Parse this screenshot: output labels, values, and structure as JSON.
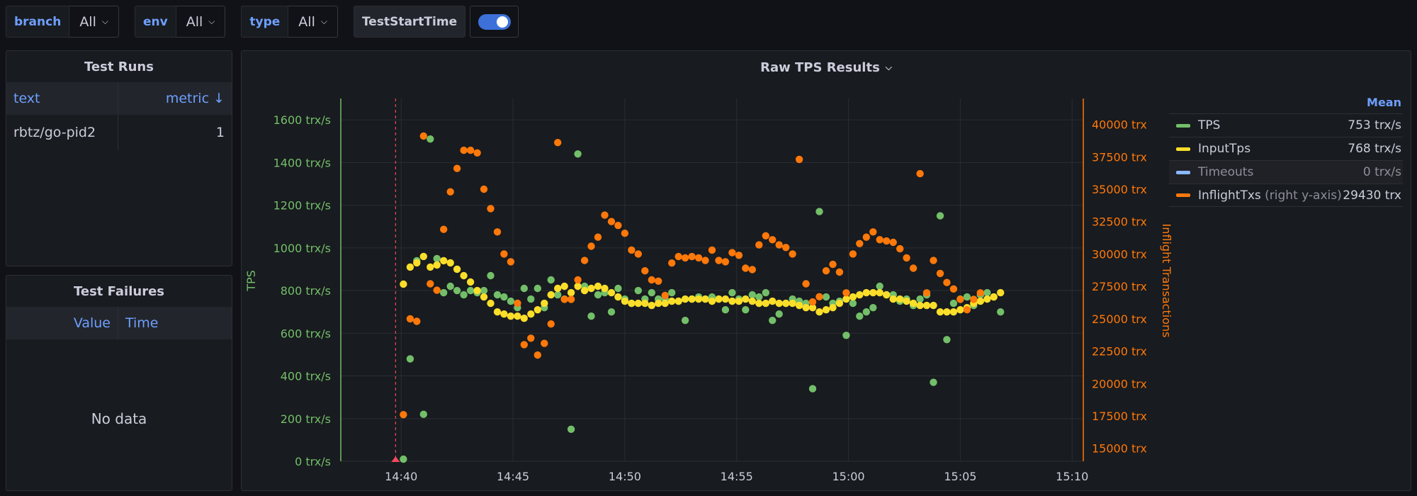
{
  "toolbar": {
    "branch": {
      "label": "branch",
      "value": "All"
    },
    "env": {
      "label": "env",
      "value": "All"
    },
    "type": {
      "label": "type",
      "value": "All"
    },
    "toggle": {
      "label": "TestStartTime",
      "on": true
    }
  },
  "test_runs": {
    "title": "Test Runs",
    "columns": [
      "text",
      "metric ↓"
    ],
    "rows": [
      {
        "text": "rbtz/go-pid2",
        "metric": "1"
      }
    ]
  },
  "test_failures": {
    "title": "Test Failures",
    "columns": [
      "Value",
      "Time"
    ],
    "empty": "No data"
  },
  "graph": {
    "title": "Raw TPS Results",
    "legend_header": "Mean",
    "legend": [
      {
        "name": "TPS",
        "note": "",
        "mean": "753 trx/s",
        "color": "#73bf69"
      },
      {
        "name": "InputTps",
        "note": "",
        "mean": "768 trx/s",
        "color": "#fade2a"
      },
      {
        "name": "Timeouts",
        "note": "",
        "mean": "0 trx/s",
        "color": "#8ab8ff"
      },
      {
        "name": "InflightTxs",
        "note": " (right y-axis)",
        "mean": "29430 trx",
        "color": "#ff780a"
      }
    ]
  },
  "chart_data": {
    "type": "scatter",
    "y_left_label": "TPS",
    "y_right_label": "Inflight Transactions",
    "y_left_range": [
      0,
      1700
    ],
    "y_right_range": [
      14000,
      42000
    ],
    "y_left_ticks": [
      "0 trx/s",
      "200 trx/s",
      "400 trx/s",
      "600 trx/s",
      "800 trx/s",
      "1000 trx/s",
      "1200 trx/s",
      "1400 trx/s",
      "1600 trx/s"
    ],
    "y_right_ticks": [
      "15000 trx",
      "17500 trx",
      "20000 trx",
      "22500 trx",
      "25000 trx",
      "27500 trx",
      "30000 trx",
      "32500 trx",
      "35000 trx",
      "37500 trx",
      "40000 trx"
    ],
    "x_range_minutes": [
      37.3,
      70.5
    ],
    "x_ticks": [
      {
        "m": 40,
        "label": "14:40"
      },
      {
        "m": 45,
        "label": "14:45"
      },
      {
        "m": 50,
        "label": "14:50"
      },
      {
        "m": 55,
        "label": "14:55"
      },
      {
        "m": 60,
        "label": "15:00"
      },
      {
        "m": 65,
        "label": "15:05"
      },
      {
        "m": 70,
        "label": "15:10"
      }
    ],
    "annotation_minute": 39.75,
    "grid": true,
    "legend_position": "right",
    "series": [
      {
        "name": "TPS",
        "color": "#73bf69",
        "axis": "left",
        "points": [
          [
            40.1,
            10
          ],
          [
            40.4,
            480
          ],
          [
            40.7,
            940
          ],
          [
            41.0,
            220
          ],
          [
            41.3,
            1510
          ],
          [
            41.6,
            950
          ],
          [
            41.9,
            790
          ],
          [
            42.2,
            820
          ],
          [
            42.5,
            800
          ],
          [
            42.8,
            780
          ],
          [
            43.1,
            800
          ],
          [
            43.4,
            790
          ],
          [
            43.7,
            800
          ],
          [
            44.0,
            870
          ],
          [
            44.3,
            780
          ],
          [
            44.6,
            770
          ],
          [
            44.9,
            750
          ],
          [
            45.2,
            720
          ],
          [
            45.5,
            810
          ],
          [
            45.8,
            760
          ],
          [
            46.1,
            810
          ],
          [
            46.4,
            720
          ],
          [
            46.7,
            850
          ],
          [
            47.0,
            780
          ],
          [
            47.3,
            760
          ],
          [
            47.6,
            150
          ],
          [
            47.9,
            1440
          ],
          [
            48.2,
            820
          ],
          [
            48.5,
            680
          ],
          [
            48.8,
            780
          ],
          [
            49.1,
            790
          ],
          [
            49.4,
            700
          ],
          [
            49.7,
            810
          ],
          [
            50.0,
            760
          ],
          [
            50.3,
            740
          ],
          [
            50.6,
            800
          ],
          [
            50.9,
            760
          ],
          [
            51.2,
            790
          ],
          [
            51.5,
            760
          ],
          [
            51.8,
            760
          ],
          [
            52.1,
            790
          ],
          [
            52.4,
            750
          ],
          [
            52.7,
            660
          ],
          [
            53.0,
            760
          ],
          [
            53.3,
            770
          ],
          [
            53.6,
            760
          ],
          [
            53.9,
            770
          ],
          [
            54.2,
            760
          ],
          [
            54.5,
            710
          ],
          [
            54.8,
            790
          ],
          [
            55.1,
            760
          ],
          [
            55.4,
            710
          ],
          [
            55.7,
            780
          ],
          [
            56.0,
            770
          ],
          [
            56.3,
            790
          ],
          [
            56.6,
            660
          ],
          [
            56.9,
            690
          ],
          [
            57.2,
            740
          ],
          [
            57.5,
            760
          ],
          [
            57.8,
            750
          ],
          [
            58.1,
            740
          ],
          [
            58.4,
            340
          ],
          [
            58.7,
            1170
          ],
          [
            59.0,
            770
          ],
          [
            59.3,
            740
          ],
          [
            59.6,
            750
          ],
          [
            59.9,
            590
          ],
          [
            60.2,
            740
          ],
          [
            60.5,
            680
          ],
          [
            60.8,
            700
          ],
          [
            61.1,
            720
          ],
          [
            61.4,
            820
          ],
          [
            61.7,
            780
          ],
          [
            62.0,
            780
          ],
          [
            62.3,
            750
          ],
          [
            62.6,
            760
          ],
          [
            62.9,
            730
          ],
          [
            63.2,
            760
          ],
          [
            63.5,
            780
          ],
          [
            63.8,
            370
          ],
          [
            64.1,
            1150
          ],
          [
            64.4,
            570
          ],
          [
            64.7,
            740
          ],
          [
            65.0,
            760
          ],
          [
            65.3,
            770
          ],
          [
            65.6,
            730
          ],
          [
            65.9,
            780
          ],
          [
            66.2,
            790
          ],
          [
            66.5,
            770
          ],
          [
            66.8,
            700
          ]
        ]
      },
      {
        "name": "InputTps",
        "color": "#fade2a",
        "axis": "left",
        "points": [
          [
            40.1,
            830
          ],
          [
            40.4,
            910
          ],
          [
            40.7,
            930
          ],
          [
            41.0,
            960
          ],
          [
            41.3,
            910
          ],
          [
            41.6,
            920
          ],
          [
            41.9,
            940
          ],
          [
            42.2,
            930
          ],
          [
            42.5,
            900
          ],
          [
            42.8,
            870
          ],
          [
            43.1,
            840
          ],
          [
            43.4,
            800
          ],
          [
            43.7,
            770
          ],
          [
            44.0,
            740
          ],
          [
            44.3,
            700
          ],
          [
            44.6,
            690
          ],
          [
            44.9,
            680
          ],
          [
            45.2,
            680
          ],
          [
            45.5,
            670
          ],
          [
            45.8,
            690
          ],
          [
            46.1,
            710
          ],
          [
            46.4,
            740
          ],
          [
            46.7,
            780
          ],
          [
            47.0,
            810
          ],
          [
            47.3,
            820
          ],
          [
            47.6,
            790
          ],
          [
            47.9,
            820
          ],
          [
            48.2,
            800
          ],
          [
            48.5,
            810
          ],
          [
            48.8,
            820
          ],
          [
            49.1,
            810
          ],
          [
            49.4,
            790
          ],
          [
            49.7,
            770
          ],
          [
            50.0,
            750
          ],
          [
            50.3,
            740
          ],
          [
            50.6,
            740
          ],
          [
            50.9,
            740
          ],
          [
            51.2,
            730
          ],
          [
            51.5,
            740
          ],
          [
            51.8,
            740
          ],
          [
            52.1,
            750
          ],
          [
            52.4,
            750
          ],
          [
            52.7,
            760
          ],
          [
            53.0,
            760
          ],
          [
            53.3,
            760
          ],
          [
            53.6,
            760
          ],
          [
            53.9,
            750
          ],
          [
            54.2,
            760
          ],
          [
            54.5,
            760
          ],
          [
            54.8,
            750
          ],
          [
            55.1,
            750
          ],
          [
            55.4,
            760
          ],
          [
            55.7,
            750
          ],
          [
            56.0,
            740
          ],
          [
            56.3,
            740
          ],
          [
            56.6,
            750
          ],
          [
            56.9,
            740
          ],
          [
            57.2,
            740
          ],
          [
            57.5,
            740
          ],
          [
            57.8,
            730
          ],
          [
            58.1,
            720
          ],
          [
            58.4,
            720
          ],
          [
            58.7,
            700
          ],
          [
            59.0,
            710
          ],
          [
            59.3,
            720
          ],
          [
            59.6,
            740
          ],
          [
            59.9,
            760
          ],
          [
            60.2,
            770
          ],
          [
            60.5,
            780
          ],
          [
            60.8,
            790
          ],
          [
            61.1,
            790
          ],
          [
            61.4,
            790
          ],
          [
            61.7,
            780
          ],
          [
            62.0,
            760
          ],
          [
            62.3,
            760
          ],
          [
            62.6,
            750
          ],
          [
            62.9,
            740
          ],
          [
            63.2,
            730
          ],
          [
            63.5,
            730
          ],
          [
            63.8,
            730
          ],
          [
            64.1,
            700
          ],
          [
            64.4,
            700
          ],
          [
            64.7,
            700
          ],
          [
            65.0,
            710
          ],
          [
            65.3,
            720
          ],
          [
            65.6,
            740
          ],
          [
            65.9,
            750
          ],
          [
            66.2,
            760
          ],
          [
            66.5,
            770
          ],
          [
            66.8,
            790
          ]
        ]
      },
      {
        "name": "Timeouts",
        "color": "#8ab8ff",
        "axis": "left",
        "points": []
      },
      {
        "name": "InflightTxs",
        "color": "#ff780a",
        "axis": "right",
        "points": [
          [
            40.1,
            17600
          ],
          [
            40.4,
            25000
          ],
          [
            40.7,
            24800
          ],
          [
            41.0,
            39100
          ],
          [
            41.3,
            27700
          ],
          [
            41.6,
            27200
          ],
          [
            41.9,
            31900
          ],
          [
            42.2,
            34800
          ],
          [
            42.5,
            36600
          ],
          [
            42.8,
            38000
          ],
          [
            43.1,
            38000
          ],
          [
            43.4,
            37800
          ],
          [
            43.7,
            35000
          ],
          [
            44.0,
            33500
          ],
          [
            44.3,
            31700
          ],
          [
            44.6,
            30000
          ],
          [
            44.9,
            29400
          ],
          [
            45.2,
            26200
          ],
          [
            45.5,
            23000
          ],
          [
            45.8,
            23500
          ],
          [
            46.1,
            22200
          ],
          [
            46.4,
            23100
          ],
          [
            46.7,
            24600
          ],
          [
            47.0,
            38600
          ],
          [
            47.3,
            26500
          ],
          [
            47.6,
            26500
          ],
          [
            47.9,
            28000
          ],
          [
            48.2,
            29500
          ],
          [
            48.5,
            30600
          ],
          [
            48.8,
            31300
          ],
          [
            49.1,
            33000
          ],
          [
            49.4,
            32500
          ],
          [
            49.7,
            32200
          ],
          [
            50.0,
            31600
          ],
          [
            50.3,
            30300
          ],
          [
            50.6,
            30000
          ],
          [
            50.9,
            28700
          ],
          [
            51.2,
            28000
          ],
          [
            51.5,
            27900
          ],
          [
            51.8,
            26800
          ],
          [
            52.1,
            29300
          ],
          [
            52.4,
            29800
          ],
          [
            52.7,
            29700
          ],
          [
            53.0,
            29800
          ],
          [
            53.3,
            29700
          ],
          [
            53.6,
            29500
          ],
          [
            53.9,
            30300
          ],
          [
            54.2,
            29500
          ],
          [
            54.5,
            29400
          ],
          [
            54.8,
            30100
          ],
          [
            55.1,
            29900
          ],
          [
            55.4,
            28900
          ],
          [
            55.7,
            28800
          ],
          [
            56.0,
            30700
          ],
          [
            56.3,
            31400
          ],
          [
            56.6,
            31100
          ],
          [
            56.9,
            30700
          ],
          [
            57.2,
            30500
          ],
          [
            57.5,
            30000
          ],
          [
            57.8,
            37300
          ],
          [
            58.1,
            27700
          ],
          [
            58.4,
            26300
          ],
          [
            58.7,
            26700
          ],
          [
            59.0,
            28700
          ],
          [
            59.3,
            29200
          ],
          [
            59.6,
            28600
          ],
          [
            59.9,
            27000
          ],
          [
            60.2,
            30000
          ],
          [
            60.5,
            30800
          ],
          [
            60.8,
            31300
          ],
          [
            61.1,
            31700
          ],
          [
            61.4,
            31100
          ],
          [
            61.7,
            31000
          ],
          [
            62.0,
            30900
          ],
          [
            62.3,
            30400
          ],
          [
            62.6,
            29700
          ],
          [
            62.9,
            28900
          ],
          [
            63.2,
            36200
          ],
          [
            63.5,
            27000
          ],
          [
            63.8,
            29500
          ],
          [
            64.1,
            28500
          ],
          [
            64.4,
            27800
          ],
          [
            64.7,
            27300
          ],
          [
            65.0,
            26500
          ],
          [
            65.3,
            25700
          ],
          [
            65.6,
            26500
          ],
          [
            65.9,
            27000
          ]
        ]
      }
    ]
  }
}
